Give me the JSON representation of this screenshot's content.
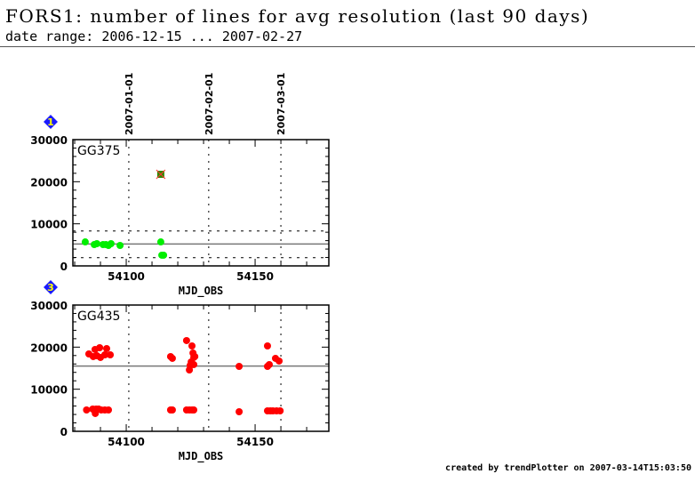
{
  "header": {
    "title": "FORS1: number of lines for avg resolution (last 90 days)",
    "subtitle": "date range: 2006-12-15 ... 2007-02-27"
  },
  "footer": "created by trendPlotter on 2007-03-14T15:03:50",
  "colors": {
    "green": "#00ee00",
    "red": "#ff0000",
    "badge": "#1a1aff",
    "badge_text": "#ffff00",
    "star_fill": "#2e8b00",
    "star_edge": "#ff3333"
  },
  "chart_data": [
    {
      "type": "scatter",
      "badge": "1",
      "panel_label": "GG375",
      "xlabel": "MJD_OBS",
      "ylabel": "",
      "xlim": [
        54079.3,
        54178.6
      ],
      "ylim": [
        0,
        30000
      ],
      "xticks": [
        54100,
        54150
      ],
      "yticks": [
        0,
        10000,
        20000,
        30000
      ],
      "date_markers": [
        {
          "label": "2007-01-01",
          "mjd": 54101
        },
        {
          "label": "2007-02-01",
          "mjd": 54132
        },
        {
          "label": "2007-03-01",
          "mjd": 54160
        }
      ],
      "reference_lines": {
        "mean": 5200,
        "lower": 1950,
        "upper": 8300
      },
      "series": [
        {
          "name": "data",
          "color": "green",
          "marker": "circle",
          "x": [
            54084.1,
            54087.6,
            54088.6,
            54091.0,
            54092.1,
            54093.1,
            54094.1,
            54097.6,
            54113.4,
            54113.8,
            54114.5
          ],
          "y": [
            5700,
            5070,
            5280,
            5070,
            5070,
            4860,
            5280,
            4860,
            5700,
            2540,
            2540
          ]
        },
        {
          "name": "outlier",
          "color": "star",
          "marker": "star",
          "x": [
            54113.4
          ],
          "y": [
            21760
          ]
        }
      ]
    },
    {
      "type": "scatter",
      "badge": "3",
      "panel_label": "GG435",
      "xlabel": "MJD_OBS",
      "ylabel": "",
      "xlim": [
        54079.3,
        54178.6
      ],
      "ylim": [
        0,
        30000
      ],
      "xticks": [
        54100,
        54150
      ],
      "yticks": [
        0,
        10000,
        20000,
        30000
      ],
      "date_markers": [
        {
          "label": "2007-01-01",
          "mjd": 54101
        },
        {
          "label": "2007-02-01",
          "mjd": 54132
        },
        {
          "label": "2007-03-01",
          "mjd": 54160
        }
      ],
      "reference_lines": {
        "mean": 15500
      },
      "series": [
        {
          "name": "data",
          "color": "red",
          "marker": "circle",
          "x": [
            54085.5,
            54087.9,
            54089.7,
            54088.6,
            54090.0,
            54091.7,
            54092.4,
            54093.8,
            54087.2,
            54084.6,
            54087.0,
            54087.6,
            54088.3,
            54089.3,
            54090.3,
            54091.7,
            54093.1,
            54088.0,
            54117.2,
            54117.9,
            54123.4,
            54125.5,
            54125.9,
            54126.2,
            54126.6,
            54125.2,
            54124.8,
            54126.2,
            54124.5,
            54117.2,
            54117.9,
            54123.4,
            54124.5,
            54125.5,
            54126.2,
            54143.8,
            54154.8,
            54154.8,
            54155.5,
            54157.9,
            54159.3,
            54143.8,
            54154.8,
            54155.9,
            54156.9,
            54158.3,
            54159.7
          ],
          "y": [
            18380,
            19440,
            19860,
            17960,
            17540,
            18170,
            19650,
            18170,
            17750,
            5070,
            5280,
            5070,
            5280,
            5280,
            5070,
            5070,
            5070,
            4230,
            17750,
            17330,
            21560,
            20280,
            18590,
            17540,
            17750,
            16480,
            15640,
            15850,
            14580,
            5070,
            5070,
            5070,
            5070,
            5070,
            5070,
            15420,
            20280,
            15420,
            15850,
            17330,
            16700,
            4650,
            4860,
            4860,
            4860,
            4860,
            4860
          ]
        }
      ]
    }
  ]
}
